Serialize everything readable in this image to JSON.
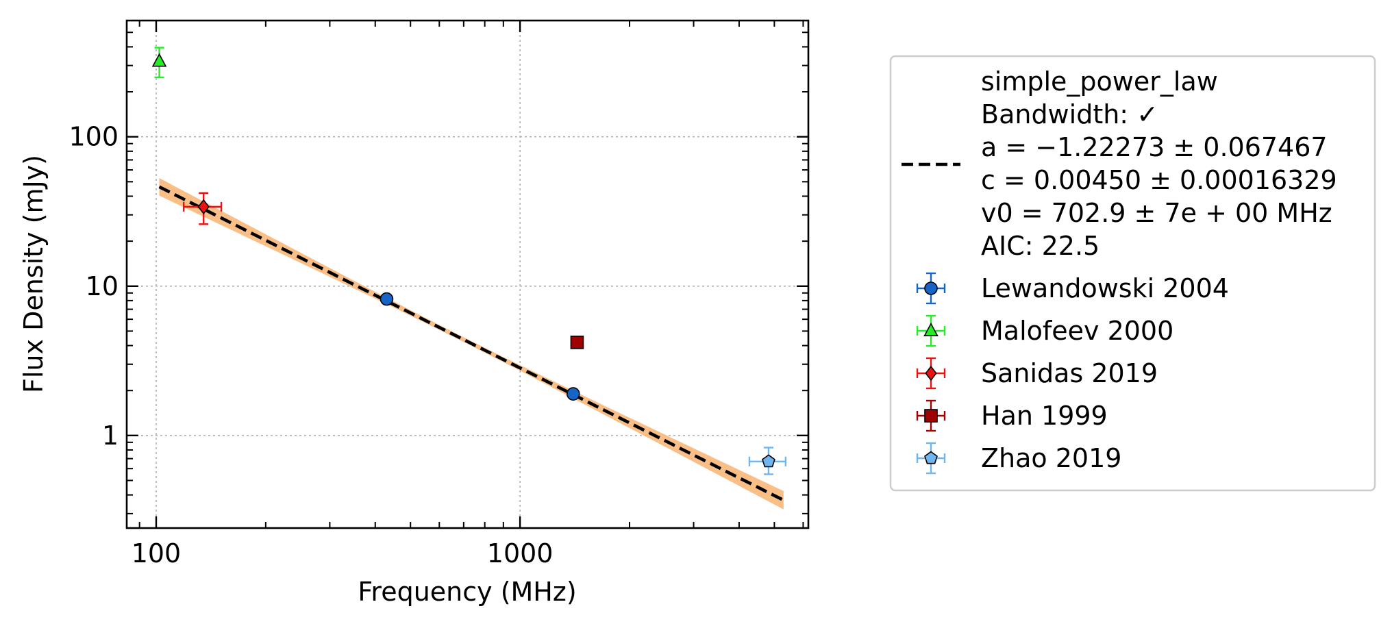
{
  "chart_data": {
    "type": "scatter",
    "xlabel": "Frequency (MHz)",
    "ylabel": "Flux Density (mJy)",
    "xscale": "log",
    "yscale": "log",
    "xlim": [
      83,
      6200
    ],
    "ylim": [
      0.24,
      600
    ],
    "grid": true,
    "legend_position": "outside-right",
    "xticks": [
      {
        "value": 100,
        "label": "100"
      },
      {
        "value": 1000,
        "label": "1000"
      }
    ],
    "yticks": [
      {
        "value": 1,
        "label": "1"
      },
      {
        "value": 10,
        "label": "10"
      },
      {
        "value": 100,
        "label": "100"
      }
    ],
    "fit": {
      "legend_lines": [
        "simple_power_law",
        "Bandwidth: ✓",
        "a = −1.22273 ± 0.067467",
        "c = 0.00450 ± 0.00016329",
        "v0 = 702.9 ± 7e + 00 MHz",
        "AIC: 22.5"
      ],
      "model": "simple_power_law",
      "a": -1.22273,
      "a_err": 0.067467,
      "c": 0.0045,
      "c_err": 0.00016329,
      "v0": 702.9,
      "x_range": [
        102,
        5300
      ],
      "color": "#000000",
      "band_color": "#f9b77a"
    },
    "series": [
      {
        "name": "Lewandowski 2004",
        "marker": "circle",
        "color": "#1565c8",
        "points": [
          {
            "x": 430,
            "y": 8.2,
            "xerr": 0,
            "yerr_lo": 0.3,
            "yerr_hi": 0.3
          },
          {
            "x": 1400,
            "y": 1.9,
            "xerr": 0,
            "yerr_lo": 0.08,
            "yerr_hi": 0.08
          }
        ]
      },
      {
        "name": "Malofeev 2000",
        "marker": "triangle",
        "color": "#22ee22",
        "points": [
          {
            "x": 102,
            "y": 320,
            "xerr": 0,
            "yerr_lo": 70,
            "yerr_hi": 75
          }
        ]
      },
      {
        "name": "Sanidas 2019",
        "marker": "diamond",
        "color": "#ee1111",
        "points": [
          {
            "x": 135,
            "y": 34,
            "xerr": 16,
            "yerr_lo": 8,
            "yerr_hi": 8
          }
        ]
      },
      {
        "name": "Han 1999",
        "marker": "square",
        "color": "#a00000",
        "points": [
          {
            "x": 1435,
            "y": 4.2,
            "xerr": 0,
            "yerr_lo": 0,
            "yerr_hi": 0
          }
        ]
      },
      {
        "name": "Zhao 2019",
        "marker": "pentagon",
        "color": "#6fb5f0",
        "points": [
          {
            "x": 4820,
            "y": 0.67,
            "xerr": 550,
            "yerr_lo": 0.12,
            "yerr_hi": 0.16
          }
        ]
      }
    ]
  }
}
